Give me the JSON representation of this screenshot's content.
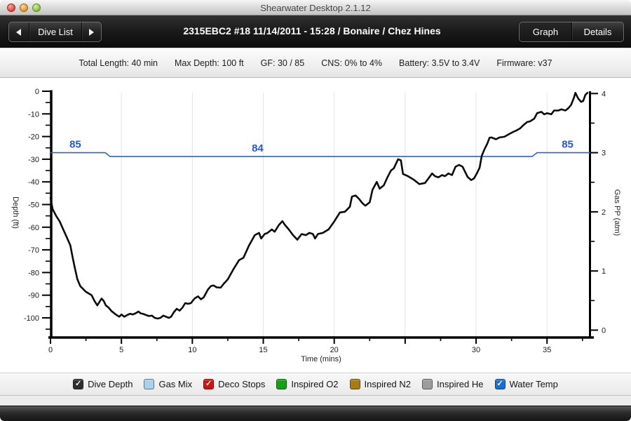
{
  "window": {
    "title": "Shearwater Desktop 2.1.12"
  },
  "toolbar": {
    "prev_dive_icon": "left-arrow",
    "dive_list_label": "Dive List",
    "next_dive_icon": "right-arrow",
    "title": "2315EBC2 #18 11/14/2011 - 15:28  / Bonaire / Chez Hines",
    "graph_label": "Graph",
    "details_label": "Details"
  },
  "info_bar": {
    "items": [
      "Total Length: 40 min",
      "Max Depth: 100 ft",
      "GF: 30 / 85",
      "CNS: 0% to 4%",
      "Battery: 3.5V to 3.4V",
      "Firmware: v37"
    ]
  },
  "legend": {
    "items": [
      {
        "label": "Dive Depth",
        "color": "#2e2e2e",
        "checked": true
      },
      {
        "label": "Gas Mix",
        "color": "#abd0ec",
        "checked": false
      },
      {
        "label": "Deco Stops",
        "color": "#cc1414",
        "checked": true
      },
      {
        "label": "Inspired O2",
        "color": "#14a014",
        "checked": false
      },
      {
        "label": "Inspired N2",
        "color": "#a67c14",
        "checked": false
      },
      {
        "label": "Inspired He",
        "color": "#9c9c9c",
        "checked": false
      },
      {
        "label": "Water Temp",
        "color": "#1a6fd4",
        "checked": true
      }
    ]
  },
  "chart_data": {
    "type": "line",
    "title": "",
    "xlabel": "Time (mins)",
    "ylabel_left": "Depth (ft)",
    "ylabel_right": "Gas PP (atm)",
    "x_range": [
      0,
      38.3
    ],
    "x_major_ticks": [
      0,
      5,
      10,
      15,
      20,
      25,
      30,
      35
    ],
    "x_tick_labels": [
      "0",
      "5",
      "10",
      "15",
      "20",
      "",
      "30",
      "35"
    ],
    "x_minor_ticks": [
      2.5,
      7.5,
      12.5,
      17.5,
      22.5,
      27.5,
      32.5,
      37.5
    ],
    "y_left_label_ticks": [
      0,
      -10,
      -20,
      -30,
      -40,
      -50,
      -60,
      -70,
      -80,
      -90,
      -100
    ],
    "y_left_minor_ticks": [
      -5,
      -15,
      -25,
      -35,
      -45,
      -55,
      -65,
      -75,
      -85,
      -95,
      -105
    ],
    "y_left_range": [
      -108.5,
      0
    ],
    "y_right_major_ticks": [
      0,
      1,
      2,
      3,
      4
    ],
    "y_right_minor_ticks": [
      0.5,
      1.5,
      2.5,
      3.5
    ],
    "y_right_range": [
      0,
      4
    ],
    "grid": "vertical-major-only",
    "legend_position": "bottom",
    "series": [
      {
        "name": "Dive Depth",
        "axis": "left",
        "color": "#0b0b0b",
        "points": [
          [
            0,
            -47
          ],
          [
            0.15,
            -52
          ],
          [
            0.4,
            -55
          ],
          [
            0.65,
            -57.5
          ],
          [
            0.9,
            -61
          ],
          [
            1.15,
            -64.5
          ],
          [
            1.4,
            -68
          ],
          [
            1.55,
            -73
          ],
          [
            1.7,
            -77.5
          ],
          [
            1.9,
            -83
          ],
          [
            2.1,
            -86
          ],
          [
            2.5,
            -88.5
          ],
          [
            2.9,
            -90
          ],
          [
            3.1,
            -92.5
          ],
          [
            3.3,
            -94.5
          ],
          [
            3.45,
            -93
          ],
          [
            3.6,
            -91.5
          ],
          [
            3.75,
            -92.5
          ],
          [
            3.9,
            -94.5
          ],
          [
            4.1,
            -95.5
          ],
          [
            4.3,
            -97
          ],
          [
            4.6,
            -98.5
          ],
          [
            4.85,
            -99.5
          ],
          [
            5,
            -98.5
          ],
          [
            5.2,
            -99.5
          ],
          [
            5.4,
            -98.8
          ],
          [
            5.6,
            -98.2
          ],
          [
            5.8,
            -98.5
          ],
          [
            6,
            -98
          ],
          [
            6.2,
            -97.2
          ],
          [
            6.35,
            -98
          ],
          [
            6.55,
            -98.3
          ],
          [
            6.75,
            -98.8
          ],
          [
            6.95,
            -99.2
          ],
          [
            7.15,
            -99
          ],
          [
            7.35,
            -100
          ],
          [
            7.55,
            -100.3
          ],
          [
            7.75,
            -100
          ],
          [
            7.95,
            -99
          ],
          [
            8.15,
            -99.5
          ],
          [
            8.35,
            -100
          ],
          [
            8.5,
            -99.5
          ],
          [
            8.7,
            -97.5
          ],
          [
            8.9,
            -96
          ],
          [
            9.1,
            -96.8
          ],
          [
            9.3,
            -95.5
          ],
          [
            9.5,
            -93.5
          ],
          [
            9.7,
            -93.8
          ],
          [
            9.9,
            -93.5
          ],
          [
            10.15,
            -91.5
          ],
          [
            10.4,
            -90.5
          ],
          [
            10.6,
            -91.8
          ],
          [
            10.8,
            -91
          ],
          [
            11.1,
            -87.5
          ],
          [
            11.3,
            -86
          ],
          [
            11.5,
            -85.7
          ],
          [
            11.7,
            -86.5
          ],
          [
            12,
            -86.7
          ],
          [
            12.2,
            -85
          ],
          [
            12.5,
            -83
          ],
          [
            12.9,
            -78.5
          ],
          [
            13.3,
            -74.5
          ],
          [
            13.6,
            -73.5
          ],
          [
            14,
            -68
          ],
          [
            14.4,
            -63.5
          ],
          [
            14.7,
            -62.5
          ],
          [
            14.85,
            -65
          ],
          [
            15.1,
            -63
          ],
          [
            15.3,
            -62.5
          ],
          [
            15.6,
            -61
          ],
          [
            15.8,
            -62
          ],
          [
            16.1,
            -59
          ],
          [
            16.35,
            -57.3
          ],
          [
            16.5,
            -58.8
          ],
          [
            16.8,
            -61
          ],
          [
            17.1,
            -63.5
          ],
          [
            17.4,
            -65.5
          ],
          [
            17.7,
            -63
          ],
          [
            18,
            -63.5
          ],
          [
            18.25,
            -62.5
          ],
          [
            18.5,
            -63
          ],
          [
            18.65,
            -65
          ],
          [
            18.85,
            -63
          ],
          [
            19.2,
            -62.5
          ],
          [
            19.6,
            -61
          ],
          [
            20,
            -57.5
          ],
          [
            20.4,
            -53.5
          ],
          [
            20.75,
            -53.2
          ],
          [
            21.1,
            -51
          ],
          [
            21.25,
            -46.5
          ],
          [
            21.5,
            -46
          ],
          [
            21.75,
            -47.5
          ],
          [
            22,
            -49.5
          ],
          [
            22.2,
            -50.5
          ],
          [
            22.5,
            -49
          ],
          [
            22.7,
            -43.5
          ],
          [
            23,
            -40
          ],
          [
            23.2,
            -43
          ],
          [
            23.5,
            -41.5
          ],
          [
            23.75,
            -38
          ],
          [
            24,
            -35
          ],
          [
            24.2,
            -34
          ],
          [
            24.5,
            -30
          ],
          [
            24.7,
            -30.5
          ],
          [
            24.85,
            -36.5
          ],
          [
            25.2,
            -37.5
          ],
          [
            25.6,
            -39
          ],
          [
            26,
            -41
          ],
          [
            26.4,
            -40.5
          ],
          [
            26.7,
            -38
          ],
          [
            26.9,
            -36.3
          ],
          [
            27.1,
            -37.5
          ],
          [
            27.35,
            -38
          ],
          [
            27.6,
            -37
          ],
          [
            27.8,
            -37.5
          ],
          [
            28.05,
            -36.3
          ],
          [
            28.3,
            -37
          ],
          [
            28.55,
            -33.3
          ],
          [
            28.8,
            -32.5
          ],
          [
            29.05,
            -33.3
          ],
          [
            29.2,
            -35.3
          ],
          [
            29.4,
            -37.8
          ],
          [
            29.65,
            -39.2
          ],
          [
            29.85,
            -38.5
          ],
          [
            30.05,
            -36.3
          ],
          [
            30.25,
            -33.7
          ],
          [
            30.4,
            -28.5
          ],
          [
            30.6,
            -25.5
          ],
          [
            30.8,
            -23
          ],
          [
            30.95,
            -20.5
          ],
          [
            31.1,
            -20.4
          ],
          [
            31.4,
            -21.2
          ],
          [
            31.65,
            -20.4
          ],
          [
            32,
            -20.1
          ],
          [
            32.3,
            -19
          ],
          [
            32.6,
            -18
          ],
          [
            32.85,
            -17.3
          ],
          [
            33.1,
            -16.4
          ],
          [
            33.35,
            -14.9
          ],
          [
            33.6,
            -13.6
          ],
          [
            33.8,
            -13.3
          ],
          [
            34.1,
            -12.1
          ],
          [
            34.3,
            -9.7
          ],
          [
            34.6,
            -9.1
          ],
          [
            34.8,
            -10.2
          ],
          [
            35,
            -9.7
          ],
          [
            35.3,
            -10.2
          ],
          [
            35.5,
            -8.5
          ],
          [
            35.8,
            -8.5
          ],
          [
            36,
            -8
          ],
          [
            36.3,
            -8.5
          ],
          [
            36.5,
            -7.5
          ],
          [
            36.7,
            -6
          ],
          [
            36.9,
            -2.8
          ],
          [
            37,
            -0.7
          ],
          [
            37.2,
            -3.2
          ],
          [
            37.4,
            -4.7
          ],
          [
            37.55,
            -4.3
          ],
          [
            37.7,
            -1.6
          ],
          [
            37.85,
            -0.7
          ]
        ]
      },
      {
        "name": "Water Temp",
        "axis": "right",
        "color": "#2e62c9",
        "unit": "F",
        "segments": [
          {
            "t_start": 0,
            "t_end": 3.86,
            "temp": 85,
            "atm": 3.0
          },
          {
            "t_start": 4.2,
            "t_end": 33.95,
            "temp": 84,
            "atm": 2.935
          },
          {
            "t_start": 34.3,
            "t_end": 38.05,
            "temp": 85,
            "atm": 3.0
          }
        ],
        "labels": [
          {
            "t": 1.75,
            "text": "85"
          },
          {
            "t": 14.6,
            "text": "84"
          },
          {
            "t": 36.45,
            "text": "85"
          }
        ]
      }
    ]
  }
}
